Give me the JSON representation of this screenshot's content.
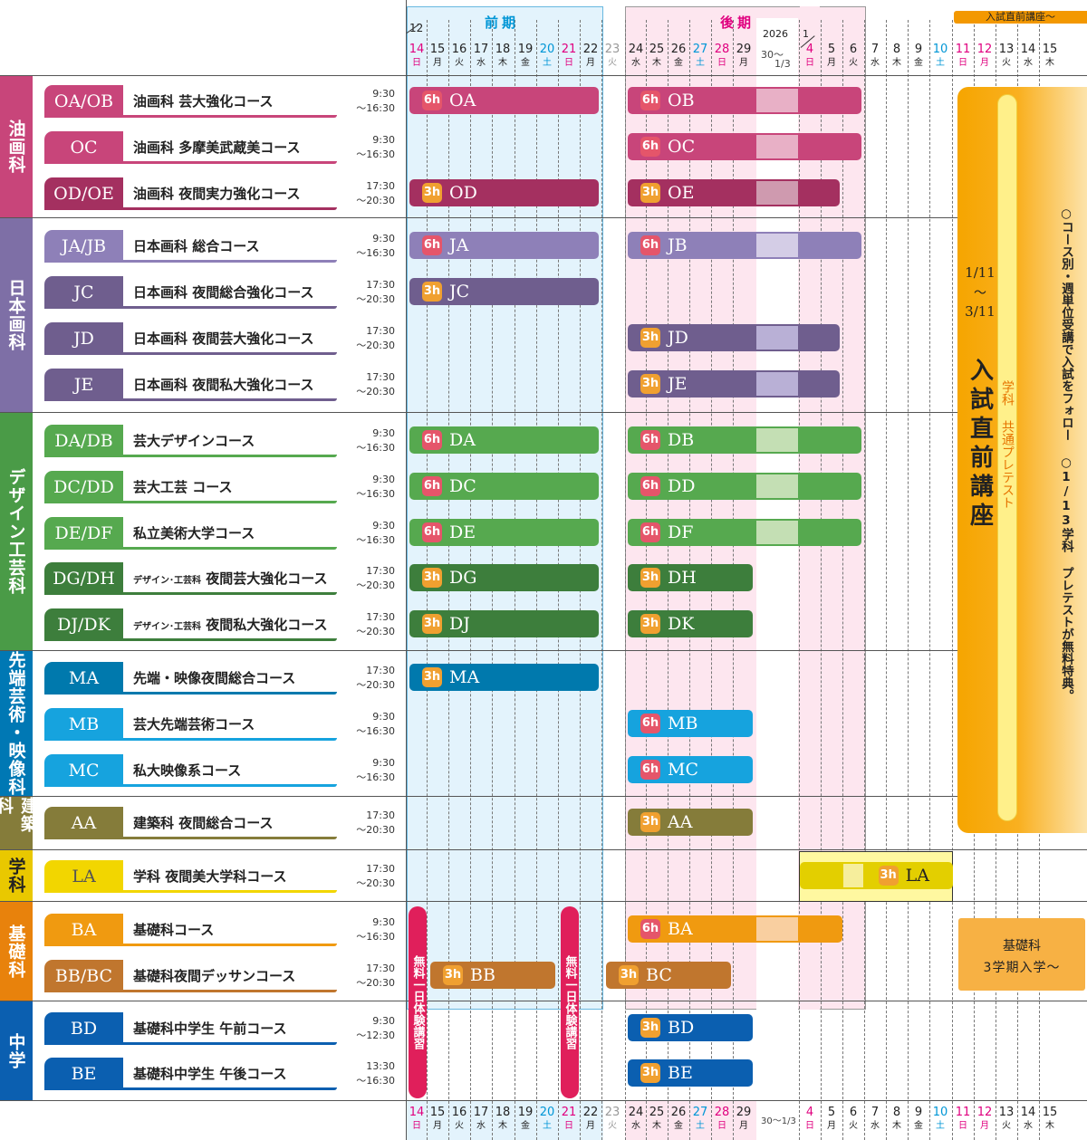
{
  "header": {
    "period1": "前期",
    "period2": "後期",
    "year": "2026",
    "month_start": "12",
    "month_jan": "1",
    "newyear_top": "30～",
    "newyear_bottom": "1/3",
    "newyear_footer": "30～1/3",
    "tab": "入試直前講座～",
    "days": [
      {
        "d": "14",
        "w": "日",
        "c": "#e0007f"
      },
      {
        "d": "15",
        "w": "月",
        "c": "#222"
      },
      {
        "d": "16",
        "w": "火",
        "c": "#222"
      },
      {
        "d": "17",
        "w": "水",
        "c": "#222"
      },
      {
        "d": "18",
        "w": "木",
        "c": "#222"
      },
      {
        "d": "19",
        "w": "金",
        "c": "#222"
      },
      {
        "d": "20",
        "w": "土",
        "c": "#0096d6"
      },
      {
        "d": "21",
        "w": "日",
        "c": "#e0007f"
      },
      {
        "d": "22",
        "w": "月",
        "c": "#222"
      },
      {
        "d": "23",
        "w": "火",
        "c": "#999"
      },
      {
        "d": "24",
        "w": "水",
        "c": "#222"
      },
      {
        "d": "25",
        "w": "木",
        "c": "#222"
      },
      {
        "d": "26",
        "w": "金",
        "c": "#222"
      },
      {
        "d": "27",
        "w": "土",
        "c": "#0096d6"
      },
      {
        "d": "28",
        "w": "日",
        "c": "#e0007f"
      },
      {
        "d": "29",
        "w": "月",
        "c": "#222"
      },
      {
        "d": "4",
        "w": "日",
        "c": "#e0007f"
      },
      {
        "d": "5",
        "w": "月",
        "c": "#222"
      },
      {
        "d": "6",
        "w": "火",
        "c": "#222"
      },
      {
        "d": "7",
        "w": "水",
        "c": "#222"
      },
      {
        "d": "8",
        "w": "木",
        "c": "#222"
      },
      {
        "d": "9",
        "w": "金",
        "c": "#222"
      },
      {
        "d": "10",
        "w": "土",
        "c": "#0096d6"
      },
      {
        "d": "11",
        "w": "日",
        "c": "#e0007f"
      },
      {
        "d": "12",
        "w": "月",
        "c": "#e0007f"
      },
      {
        "d": "13",
        "w": "火",
        "c": "#222"
      },
      {
        "d": "14",
        "w": "水",
        "c": "#222"
      },
      {
        "d": "15",
        "w": "木",
        "c": "#222"
      }
    ]
  },
  "categories": [
    {
      "label": "油画科",
      "color": "#c8457a"
    },
    {
      "label": "日本画科",
      "color": "#7e6fa6"
    },
    {
      "label": "デザイン工芸科",
      "color": "#4a9b47"
    },
    {
      "label": "先端芸術・映像科",
      "color": "#0078b4"
    },
    {
      "label": "建築科",
      "color": "#857c3a"
    },
    {
      "label": "学科",
      "color": "#e9c800"
    },
    {
      "label": "基礎科",
      "color": "#e8820c"
    },
    {
      "label": "中学",
      "color": "#0b5fb0"
    }
  ],
  "courses": [
    {
      "code": "OA/OB",
      "name": "油画科 芸大強化コース",
      "t1": "9:30",
      "t2": "～16:30",
      "color": "#c8457a"
    },
    {
      "code": "OC",
      "name": "油画科 多摩美武蔵美コース",
      "t1": "9:30",
      "t2": "～16:30",
      "color": "#c8457a"
    },
    {
      "code": "OD/OE",
      "name": "油画科 夜間実力強化コース",
      "t1": "17:30",
      "t2": "～20:30",
      "color": "#a43060"
    },
    {
      "code": "JA/JB",
      "name": "日本画科 総合コース",
      "t1": "9:30",
      "t2": "～16:30",
      "color": "#8e80b8"
    },
    {
      "code": "JC",
      "name": "日本画科 夜間総合強化コース",
      "t1": "17:30",
      "t2": "～20:30",
      "color": "#6f5e8e"
    },
    {
      "code": "JD",
      "name": "日本画科 夜間芸大強化コース",
      "t1": "17:30",
      "t2": "～20:30",
      "color": "#6f5e8e"
    },
    {
      "code": "JE",
      "name": "日本画科 夜間私大強化コース",
      "t1": "17:30",
      "t2": "～20:30",
      "color": "#6f5e8e"
    },
    {
      "code": "DA/DB",
      "name": "芸大デザインコース",
      "t1": "9:30",
      "t2": "～16:30",
      "color": "#56a94f"
    },
    {
      "code": "DC/DD",
      "name": "芸大工芸 コース",
      "t1": "9:30",
      "t2": "～16:30",
      "color": "#56a94f"
    },
    {
      "code": "DE/DF",
      "name": "私立美術大学コース",
      "t1": "9:30",
      "t2": "～16:30",
      "color": "#56a94f"
    },
    {
      "code": "DG/DH",
      "name": "デザイン･工芸科 夜間芸大強化コース",
      "t1": "17:30",
      "t2": "～20:30",
      "color": "#3d7e3c"
    },
    {
      "code": "DJ/DK",
      "name": "デザイン･工芸科 夜間私大強化コース",
      "t1": "17:30",
      "t2": "～20:30",
      "color": "#3d7e3c"
    },
    {
      "code": "MA",
      "name": "先端・映像夜間総合コース",
      "t1": "17:30",
      "t2": "～20:30",
      "color": "#0079ad"
    },
    {
      "code": "MB",
      "name": "芸大先端芸術コース",
      "t1": "9:30",
      "t2": "～16:30",
      "color": "#16a3de"
    },
    {
      "code": "MC",
      "name": "私大映像系コース",
      "t1": "9:30",
      "t2": "～16:30",
      "color": "#16a3de"
    },
    {
      "code": "AA",
      "name": "建築科 夜間総合コース",
      "t1": "17:30",
      "t2": "～20:30",
      "color": "#857c3a"
    },
    {
      "code": "LA",
      "name": "学科 夜間美大学科コース",
      "t1": "17:30",
      "t2": "～20:30",
      "color": "#f2d600"
    },
    {
      "code": "BA",
      "name": "基礎科コース",
      "t1": "9:30",
      "t2": "～16:30",
      "color": "#f09a10"
    },
    {
      "code": "BB/BC",
      "name": "基礎科夜間デッサンコース",
      "t1": "17:30",
      "t2": "～20:30",
      "color": "#c0762e"
    },
    {
      "code": "BD",
      "name": "基礎科中学生 午前コース",
      "t1": "9:30",
      "t2": "～12:30",
      "color": "#0b5fb0"
    },
    {
      "code": "BE",
      "name": "基礎科中学生 午後コース",
      "t1": "13:30",
      "t2": "～16:30",
      "color": "#0b5fb0"
    }
  ],
  "bars": [
    {
      "h": "6h",
      "label": "OA",
      "color": "#c8457a"
    },
    {
      "h": "6h",
      "label": "OB",
      "color": "#c8457a"
    },
    {
      "h": "6h",
      "label": "OC",
      "color": "#c8457a"
    },
    {
      "h": "3h",
      "label": "OD",
      "color": "#a43060"
    },
    {
      "h": "3h",
      "label": "OE",
      "color": "#a43060"
    },
    {
      "h": "6h",
      "label": "JA",
      "color": "#8e80b8"
    },
    {
      "h": "6h",
      "label": "JB",
      "color": "#8e80b8"
    },
    {
      "h": "3h",
      "label": "JC",
      "color": "#6f5e8e"
    },
    {
      "h": "3h",
      "label": "JD",
      "color": "#6f5e8e"
    },
    {
      "h": "3h",
      "label": "JE",
      "color": "#6f5e8e"
    },
    {
      "h": "6h",
      "label": "DA",
      "color": "#56a94f"
    },
    {
      "h": "6h",
      "label": "DB",
      "color": "#56a94f"
    },
    {
      "h": "6h",
      "label": "DC",
      "color": "#56a94f"
    },
    {
      "h": "6h",
      "label": "DD",
      "color": "#56a94f"
    },
    {
      "h": "6h",
      "label": "DE",
      "color": "#56a94f"
    },
    {
      "h": "6h",
      "label": "DF",
      "color": "#56a94f"
    },
    {
      "h": "3h",
      "label": "DG",
      "color": "#3d7e3c"
    },
    {
      "h": "3h",
      "label": "DH",
      "color": "#3d7e3c"
    },
    {
      "h": "3h",
      "label": "DJ",
      "color": "#3d7e3c"
    },
    {
      "h": "3h",
      "label": "DK",
      "color": "#3d7e3c"
    },
    {
      "h": "3h",
      "label": "MA",
      "color": "#0079ad"
    },
    {
      "h": "6h",
      "label": "MB",
      "color": "#16a3de"
    },
    {
      "h": "6h",
      "label": "MC",
      "color": "#16a3de"
    },
    {
      "h": "3h",
      "label": "AA",
      "color": "#857c3a"
    },
    {
      "h": "3h",
      "label": "LA",
      "color": "#e3cf00"
    },
    {
      "h": "6h",
      "label": "BA",
      "color": "#f09a10"
    },
    {
      "h": "3h",
      "label": "BB",
      "color": "#c0762e"
    },
    {
      "h": "3h",
      "label": "BC",
      "color": "#c0762e"
    },
    {
      "h": "3h",
      "label": "BD",
      "color": "#0b5fb0"
    },
    {
      "h": "3h",
      "label": "BE",
      "color": "#0b5fb0"
    }
  ],
  "free_trial": "無料一日体験講習",
  "side": {
    "date1": "1/11",
    "tilde": "～",
    "date2": "3/11",
    "title": "入試直前講座",
    "pretest": "学科 共通プレテスト",
    "note": "○コース別・週単位受講で入試をフォロー ○1/13学科 プレテストが無料特典。",
    "basic1": "基礎科",
    "basic2": "3学期入学～"
  }
}
